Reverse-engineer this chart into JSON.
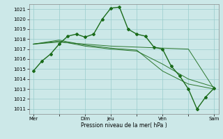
{
  "background_color": "#cce8e8",
  "grid_color": "#99cccc",
  "line_color": "#1a6b1a",
  "xlabel": "Pression niveau de la mer( hPa )",
  "ylim": [
    1010.5,
    1021.5
  ],
  "yticks": [
    1011,
    1012,
    1013,
    1014,
    1015,
    1016,
    1017,
    1018,
    1019,
    1020,
    1021
  ],
  "xtick_labels": [
    "Mer",
    "",
    "Dim",
    "Jeu",
    "",
    "Ven",
    "",
    "Sam"
  ],
  "xtick_positions": [
    0,
    3,
    6,
    9,
    12,
    15,
    18,
    21
  ],
  "main_x": [
    0,
    1,
    2,
    3,
    4,
    5,
    6,
    7,
    8,
    9,
    10,
    11,
    12,
    13,
    14,
    15,
    16,
    17,
    18,
    19,
    20,
    21
  ],
  "main_y": [
    1014.8,
    1015.8,
    1016.5,
    1017.5,
    1018.3,
    1018.5,
    1018.2,
    1018.5,
    1020.0,
    1021.1,
    1021.2,
    1019.0,
    1018.5,
    1018.3,
    1017.2,
    1017.0,
    1015.3,
    1014.3,
    1013.0,
    1011.0,
    1012.2,
    1013.1
  ],
  "line2_x": [
    0,
    3,
    6,
    9,
    12,
    15,
    18,
    21
  ],
  "line2_y": [
    1017.5,
    1017.7,
    1017.5,
    1017.3,
    1017.2,
    1017.1,
    1017.0,
    1013.0
  ],
  "line3_x": [
    0,
    3,
    6,
    9,
    12,
    15,
    18,
    21
  ],
  "line3_y": [
    1017.5,
    1017.8,
    1017.3,
    1017.0,
    1016.8,
    1015.5,
    1014.0,
    1013.2
  ],
  "line4_x": [
    0,
    3,
    6,
    9,
    12,
    15,
    18,
    21
  ],
  "line4_y": [
    1017.5,
    1017.9,
    1017.4,
    1017.1,
    1016.9,
    1014.8,
    1013.5,
    1013.0
  ]
}
